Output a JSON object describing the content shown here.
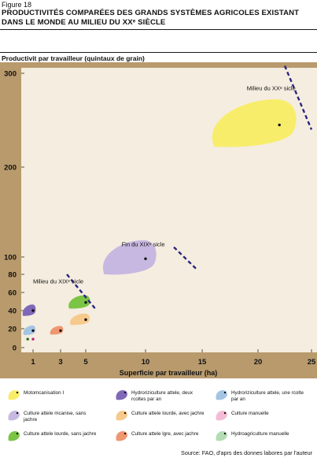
{
  "figure_label": "Figure 18",
  "title_line1": "PRODUCTIVITÉS COMPARÉES DES GRANDS SYSTÈMES AGRICOLES EXISTANT",
  "title_line2": "DANS LE MONDE AU MILIEU DU XXᵉ SIÈCLE",
  "source": "Source: FAO, d'aprs des donnes labores par l'auteur",
  "chart_data": {
    "type": "scatter",
    "ylabel": "Productivit par travailleur (quintaux de grain)",
    "xlabel": "Superficie par travailleur (ha)",
    "x_ticks": [
      "1",
      "3",
      "5",
      "10",
      "15",
      "20",
      "25"
    ],
    "y_ticks": [
      "0",
      "20",
      "40",
      "60",
      "80",
      "100",
      "200",
      "300"
    ],
    "xlim": [
      0,
      25
    ],
    "ylim": [
      0,
      300
    ],
    "grid": false,
    "annotations": [
      {
        "text": "Milieu du XIXᵉ sicle",
        "x": 1,
        "y": 70
      },
      {
        "text": "Fin du XIXᵉ sicle",
        "x": 8,
        "y": 112
      },
      {
        "text": "Milieu du XXᵉ sicle",
        "x": 19,
        "y": 282
      }
    ],
    "frontiers": [
      {
        "name": "Milieu du XIXᵉ sicle",
        "points": [
          [
            3.5,
            80
          ],
          [
            5.8,
            42
          ]
        ]
      },
      {
        "name": "Fin du XIXᵉ sicle",
        "points": [
          [
            12.5,
            111
          ],
          [
            14.5,
            86
          ]
        ]
      },
      {
        "name": "Milieu du XXᵉ sicle",
        "points": [
          [
            22.5,
            308
          ],
          [
            25,
            240
          ]
        ]
      }
    ],
    "series": [
      {
        "name": "Motomcanisation I",
        "color": "#f8ed6a",
        "x": 22,
        "y": 245
      },
      {
        "name": "Culture attele mcanise, sans jachre",
        "color": "#c6b8e0",
        "x": 10,
        "y": 98
      },
      {
        "name": "Culture attele lourde, sans jachre",
        "color": "#7bc445",
        "x": 5,
        "y": 49
      },
      {
        "name": "Culture attele lourde, avec jachre",
        "color": "#f6c98c",
        "x": 5,
        "y": 30
      },
      {
        "name": "Culture attele lgre, avec jachre",
        "color": "#f09670",
        "x": 3,
        "y": 18
      },
      {
        "name": "Hydroriziculture attele, deux rcoltes par an",
        "color": "#8068b8",
        "x": 1,
        "y": 40
      },
      {
        "name": "Hydroriziculture attele, une rcolte par an",
        "color": "#a4c4e4",
        "x": 1,
        "y": 18
      },
      {
        "name": "Culture manuelle",
        "color": "#f4bcd4",
        "x": 1,
        "y": 9
      },
      {
        "name": "Hydroagriculture manuelle",
        "color": "#b4dcb4",
        "x": 0.6,
        "y": 9
      }
    ]
  },
  "legend": [
    {
      "label": "Motomcanisation I",
      "color": "#f8ed6a",
      "icon": "blob-icon"
    },
    {
      "label": "Hydroriziculture attele, deux rcoltes par an",
      "color": "#8068b8",
      "icon": "blob-icon"
    },
    {
      "label": "Hydroriziculture attele, une rcolte par an",
      "color": "#a4c4e4",
      "icon": "blob-icon"
    },
    {
      "label": "Culture attele mcanise, sans jachre",
      "color": "#c6b8e0",
      "icon": "blob-icon"
    },
    {
      "label": "Culture attele lourde, avec jachre",
      "color": "#f6c98c",
      "icon": "blob-icon"
    },
    {
      "label": "Culture manuelle",
      "color": "#f4bcd4",
      "icon": "blob-icon"
    },
    {
      "label": "Culture attele lourde, sans jachre",
      "color": "#7bc445",
      "icon": "blob-icon"
    },
    {
      "label": "Culture attele lgre, avec jachre",
      "color": "#f09670",
      "icon": "blob-icon"
    },
    {
      "label": "Hydroagriculture manuelle",
      "color": "#b4dcb4",
      "icon": "blob-icon"
    }
  ]
}
